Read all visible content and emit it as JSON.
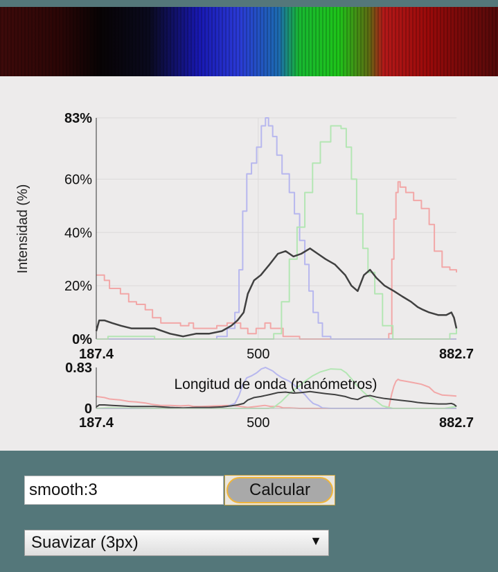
{
  "chart_data": {
    "type": "line",
    "title": "",
    "ylabel": "Intensidad (%)",
    "xlabel": "Longitud de onda (nanómetros)",
    "xlim": [
      187.4,
      882.7
    ],
    "ylim": [
      0,
      83
    ],
    "x_ticks": [
      "187.4",
      "500",
      "882.7"
    ],
    "y_ticks": [
      "0%",
      "20%",
      "40%",
      "60%",
      "83%"
    ],
    "mini_y_ticks": [
      "0",
      "0.83"
    ],
    "grid": true,
    "series": [
      {
        "color": "#f2a7a7",
        "x": [
          187.4,
          203,
          213,
          234,
          250,
          265,
          282,
          296,
          312,
          330,
          350,
          366,
          375,
          390,
          420,
          440,
          452,
          466,
          480,
          496,
          513,
          524,
          530,
          540,
          548,
          560,
          580,
          598,
          608,
          620,
          640,
          655,
          668,
          675,
          684,
          692,
          705,
          720,
          735,
          745,
          752,
          758,
          762,
          766,
          770,
          774,
          785,
          800,
          815,
          830,
          840,
          855,
          870,
          882.7
        ],
        "y": [
          24,
          22,
          19,
          17,
          14,
          13,
          11,
          8,
          6,
          6,
          5,
          6,
          4,
          4,
          5,
          6,
          6,
          4,
          2,
          4,
          6,
          4,
          4,
          4,
          1,
          1,
          0,
          0,
          0,
          0,
          0,
          0,
          0,
          0,
          0,
          0,
          0,
          0,
          0,
          0,
          2,
          30,
          45,
          55,
          59,
          57,
          55,
          52,
          49,
          43,
          33,
          27,
          26,
          25
        ]
      },
      {
        "color": "#b7b7ee",
        "x": [
          187.4,
          280,
          380,
          420,
          440,
          455,
          463,
          470,
          478,
          487,
          497,
          506,
          514,
          520,
          528,
          536,
          546,
          560,
          570,
          580,
          590,
          598,
          606,
          616,
          624,
          640,
          882.7
        ],
        "y": [
          0,
          0,
          0,
          1,
          4,
          10,
          26,
          48,
          62,
          66,
          72,
          80,
          83,
          80,
          76,
          69,
          62,
          55,
          47,
          37,
          28,
          18,
          10,
          6,
          1,
          0,
          0
        ]
      },
      {
        "color": "#b3e6b3",
        "x": [
          187.4,
          210,
          300,
          420,
          480,
          505,
          520,
          530,
          545,
          560,
          575,
          590,
          605,
          620,
          640,
          660,
          670,
          680,
          690,
          702,
          712,
          725,
          740,
          760,
          860,
          870,
          882.7
        ],
        "y": [
          0,
          1,
          0,
          0,
          0,
          0,
          0,
          2,
          14,
          30,
          42,
          55,
          66,
          74,
          80,
          79,
          72,
          60,
          47,
          34,
          25,
          17,
          5,
          0,
          0,
          2,
          4
        ]
      },
      {
        "color": "#404040",
        "x": [
          187.4,
          193,
          203,
          218,
          235,
          255,
          275,
          300,
          330,
          355,
          380,
          405,
          430,
          448,
          460,
          472,
          480,
          492,
          505,
          522,
          538,
          553,
          568,
          583,
          600,
          615,
          630,
          648,
          658,
          668,
          680,
          692,
          704,
          716,
          728,
          744,
          762,
          778,
          795,
          808,
          818,
          830,
          848,
          863,
          873,
          878,
          882.7
        ],
        "y": [
          3,
          7,
          7,
          6,
          5,
          4,
          4,
          4,
          2,
          1,
          2,
          2,
          3,
          5,
          7,
          10,
          17,
          22,
          24,
          28,
          32,
          33,
          31,
          32,
          34,
          32,
          30,
          28,
          26,
          24,
          20,
          18,
          24,
          26,
          23,
          20,
          18,
          16,
          14,
          12,
          11,
          10,
          9,
          9,
          10,
          8,
          4
        ]
      }
    ]
  },
  "controls": {
    "macro_value": "smooth:3",
    "calculate_label": "Calcular",
    "smoothing_selected": "Suavizar (3px)",
    "select_arrow": "▼"
  }
}
